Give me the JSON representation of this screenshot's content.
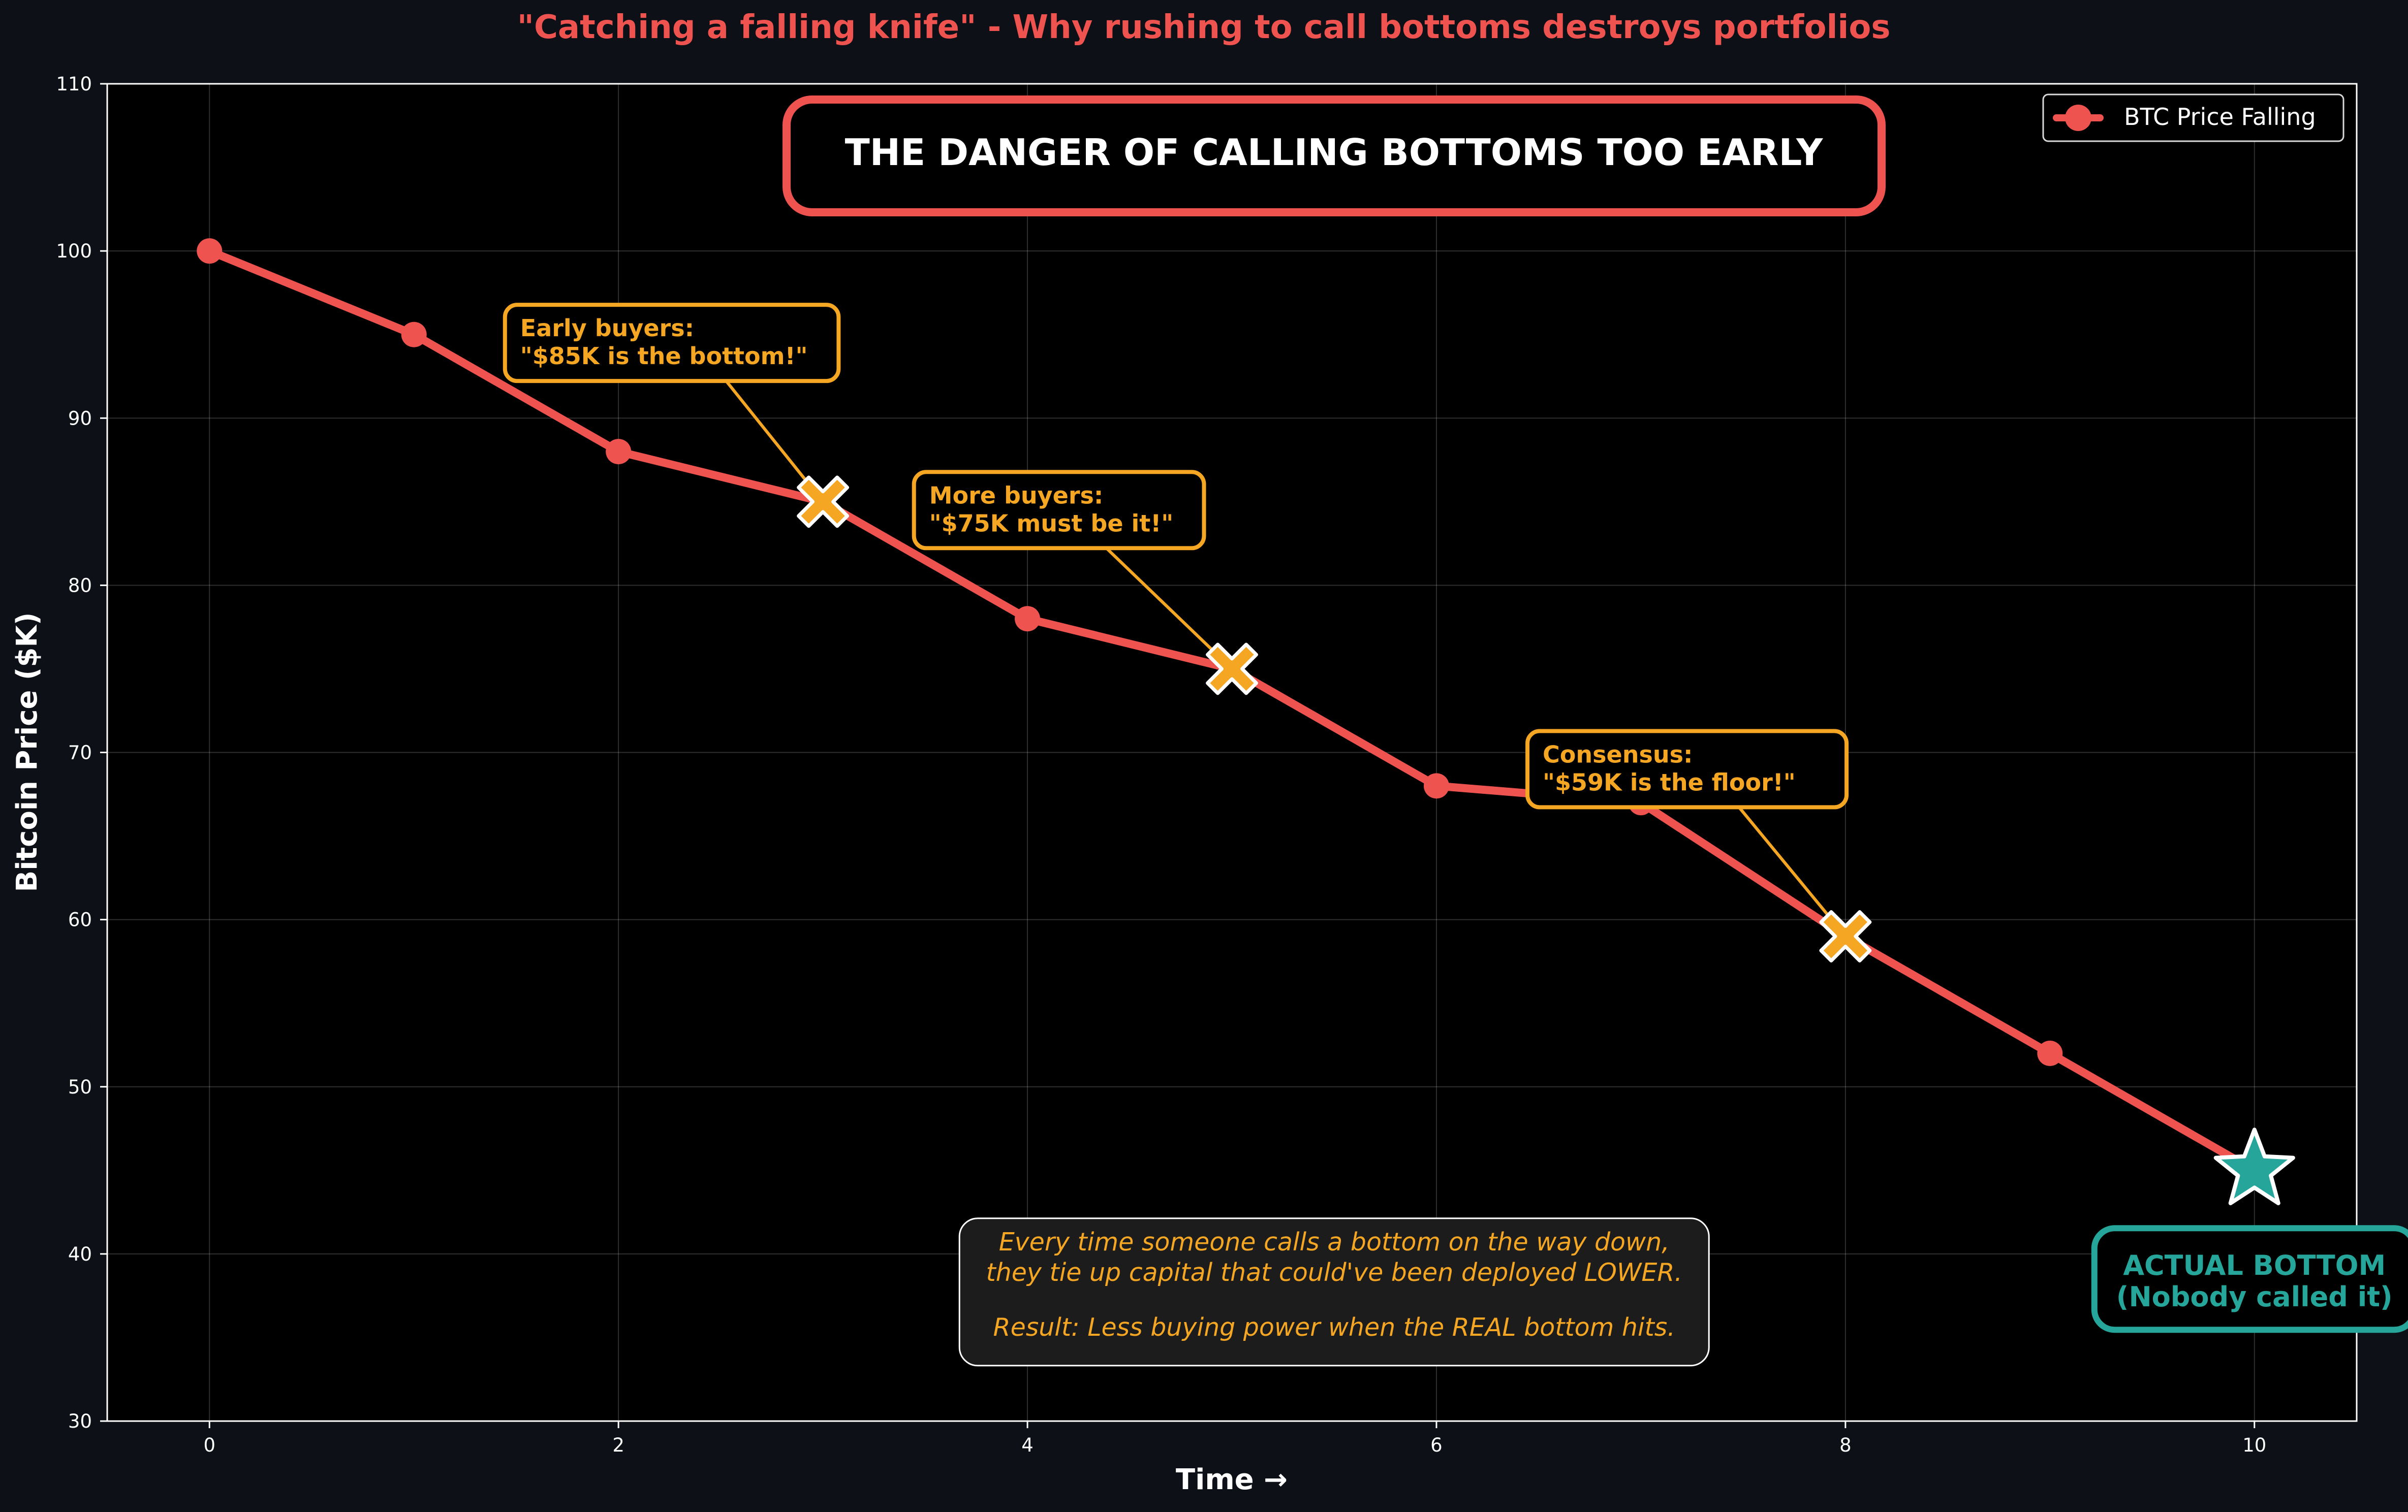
{
  "chart_data": {
    "type": "line",
    "title": "\"Catching a falling knife\" - Why rushing to call bottoms destroys portfolios",
    "xlabel": "Time →",
    "ylabel": "Bitcoin Price ($K)",
    "xlim": [
      -0.5,
      10.5
    ],
    "ylim": [
      30,
      110
    ],
    "xticks": [
      0,
      2,
      4,
      6,
      8,
      10
    ],
    "yticks": [
      30,
      40,
      50,
      60,
      70,
      80,
      90,
      100,
      110
    ],
    "grid": true,
    "legend_position": "top-right",
    "series": [
      {
        "name": "BTC Price Falling",
        "color": "#ef5350",
        "x": [
          0,
          1,
          2,
          3,
          4,
          5,
          6,
          7,
          8,
          9,
          10
        ],
        "y": [
          100,
          95,
          88,
          85,
          78,
          75,
          68,
          67,
          59,
          52,
          45
        ]
      }
    ],
    "highlighted_points": [
      {
        "x": 3,
        "y": 85,
        "marker": "x",
        "color": "#f5a623"
      },
      {
        "x": 5,
        "y": 75,
        "marker": "x",
        "color": "#f5a623"
      },
      {
        "x": 8,
        "y": 59,
        "marker": "x",
        "color": "#f5a623"
      },
      {
        "x": 10,
        "y": 45,
        "marker": "star",
        "color": "#26a69a"
      }
    ],
    "banner": "THE DANGER OF CALLING BOTTOMS TOO EARLY",
    "annotations": [
      {
        "line1": "Early buyers:",
        "line2": "\"$85K is the bottom!\"",
        "box_x": 1.45,
        "box_y": 94.5,
        "target_x": 3,
        "target_y": 85
      },
      {
        "line1": "More buyers:",
        "line2": "\"$75K must be it!\"",
        "box_x": 3.45,
        "box_y": 84.5,
        "target_x": 5,
        "target_y": 75
      },
      {
        "line1": "Consensus:",
        "line2": "\"$59K is the floor!\"",
        "box_x": 6.45,
        "box_y": 69,
        "target_x": 8,
        "target_y": 59
      }
    ],
    "bottom_label": {
      "line1": "ACTUAL BOTTOM",
      "line2": "(Nobody called it)",
      "x": 10,
      "y": 38.5
    },
    "note": {
      "line1": "Every time someone calls a bottom on the way down,",
      "line2": "they tie up capital that could've been deployed LOWER.",
      "line3": "Result: Less buying power when the REAL bottom hits.",
      "x": 5.5,
      "y": 39
    }
  },
  "colors": {
    "background": "#0d1117",
    "plot_background": "#000000",
    "title": "#ef5350",
    "line": "#ef5350",
    "callout": "#f5a623",
    "bottom": "#26a69a",
    "text": "#ffffff"
  }
}
